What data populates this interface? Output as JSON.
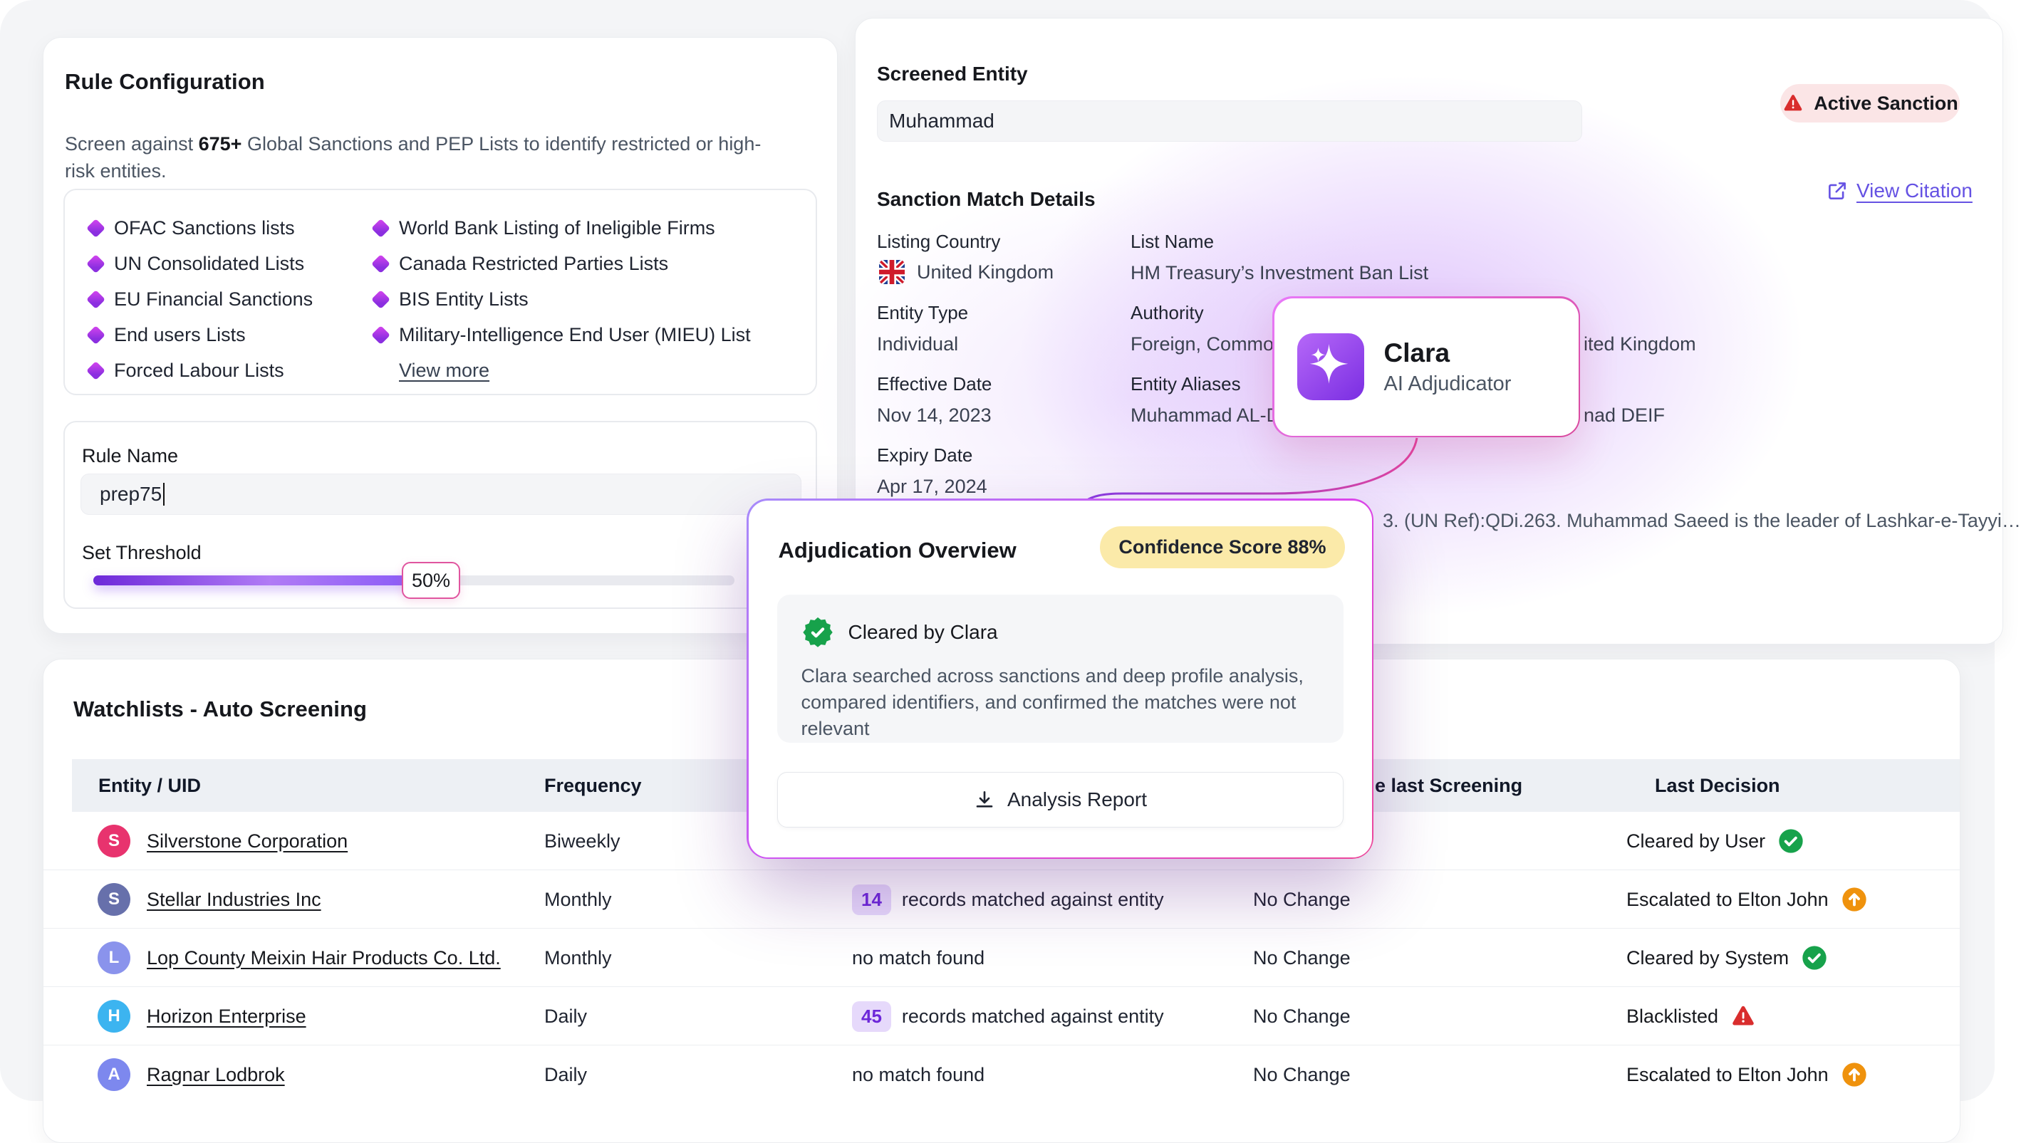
{
  "colors": {
    "accent_purple": "#7c3aed",
    "magenta": "#d946ef",
    "link_violet": "#6552e3",
    "green": "#16a34a",
    "orange": "#ef920d",
    "red": "#dc2626",
    "confidence_bg": "#fbeaa9",
    "sanction_bg": "#fbe5e6",
    "count_badge_bg": "#e6d9fb"
  },
  "rule_config": {
    "title": "Rule Configuration",
    "desc_prefix": "Screen against ",
    "desc_bold": "675+",
    "desc_suffix": " Global Sanctions and PEP Lists to identify restricted or high-risk entities.",
    "lists_col1": [
      "OFAC Sanctions lists",
      "UN Consolidated Lists",
      "EU Financial Sanctions",
      "End users Lists",
      "Forced Labour Lists"
    ],
    "lists_col2": [
      "World Bank Listing of Ineligible Firms",
      "Canada Restricted Parties Lists",
      "BIS Entity Lists",
      "Military-Intelligence End User (MIEU) List"
    ],
    "view_more": "View more",
    "rule_name_label": "Rule Name",
    "rule_name_value": "prep75",
    "threshold_label": "Set Threshold",
    "threshold_value": "50%",
    "threshold_percent": 50
  },
  "screened_entity": {
    "title": "Screened Entity",
    "input_value": "Muhammad",
    "active_badge": "Active Sanction",
    "section_title": "Sanction Match Details",
    "view_citation": "View Citation",
    "fields": {
      "listing_country_label": "Listing Country",
      "listing_country_value": "United Kingdom",
      "list_name_label": "List Name",
      "list_name_value": "HM Treasury’s Investment Ban List",
      "entity_type_label": "Entity Type",
      "entity_type_value": "Individual",
      "authority_label": "Authority",
      "authority_left": "Foreign, Commo",
      "authority_right": "ited Kingdom",
      "effective_date_label": "Effective Date",
      "effective_date_value": "Nov 14, 2023",
      "aliases_label": "Entity Aliases",
      "aliases_left": "Muhammad AL-D",
      "aliases_right": "nad DEIF",
      "expiry_date_label": "Expiry Date",
      "expiry_date_value": "Apr 17, 2024"
    },
    "description_fragment": "3. (UN Ref):QDi.263. Muhammad Saeed is the leader of Lashkar-e-Tayyi…"
  },
  "clara_card": {
    "title": "Clara",
    "subtitle": "AI Adjudicator"
  },
  "adjudication": {
    "title": "Adjudication Overview",
    "confidence_badge": "Confidence Score 88%",
    "status": "Cleared by Clara",
    "description": "Clara searched across sanctions and deep profile analysis, compared identifiers, and confirmed the matches were not relevant",
    "button_label": "Analysis Report"
  },
  "watchlists": {
    "title": "Watchlists - Auto Screening",
    "headers": {
      "entity": "Entity / UID",
      "frequency": "Frequency",
      "change_fragment": "e last Screening",
      "last_decision": "Last Decision"
    },
    "rows": [
      {
        "initial": "S",
        "color": "#e8336e",
        "name": "Silverstone Corporation",
        "frequency": "Biweekly",
        "match": null,
        "change": null,
        "decision": "Cleared by User",
        "decision_icon": "check"
      },
      {
        "initial": "S",
        "color": "#6770ab",
        "name": "Stellar Industries Inc",
        "frequency": "Monthly",
        "match": {
          "count": "14",
          "text": "records matched against entity"
        },
        "change": "No Change",
        "decision": "Escalated to Elton John",
        "decision_icon": "up"
      },
      {
        "initial": "L",
        "color": "#8a93ec",
        "name": "Lop County Meixin Hair Products Co. Ltd.",
        "frequency": "Monthly",
        "match": {
          "text": "no match found"
        },
        "change": "No Change",
        "decision": "Cleared by System",
        "decision_icon": "check"
      },
      {
        "initial": "H",
        "color": "#3cb4f0",
        "name": "Horizon Enterprise",
        "frequency": "Daily",
        "match": {
          "count": "45",
          "text": "records matched against entity"
        },
        "change": "No Change",
        "decision": "Blacklisted",
        "decision_icon": "alert"
      },
      {
        "initial": "A",
        "color": "#7d88ee",
        "name": "Ragnar Lodbrok",
        "frequency": "Daily",
        "match": {
          "text": "no match found"
        },
        "change": "No Change",
        "decision": "Escalated to Elton John",
        "decision_icon": "up"
      }
    ]
  }
}
